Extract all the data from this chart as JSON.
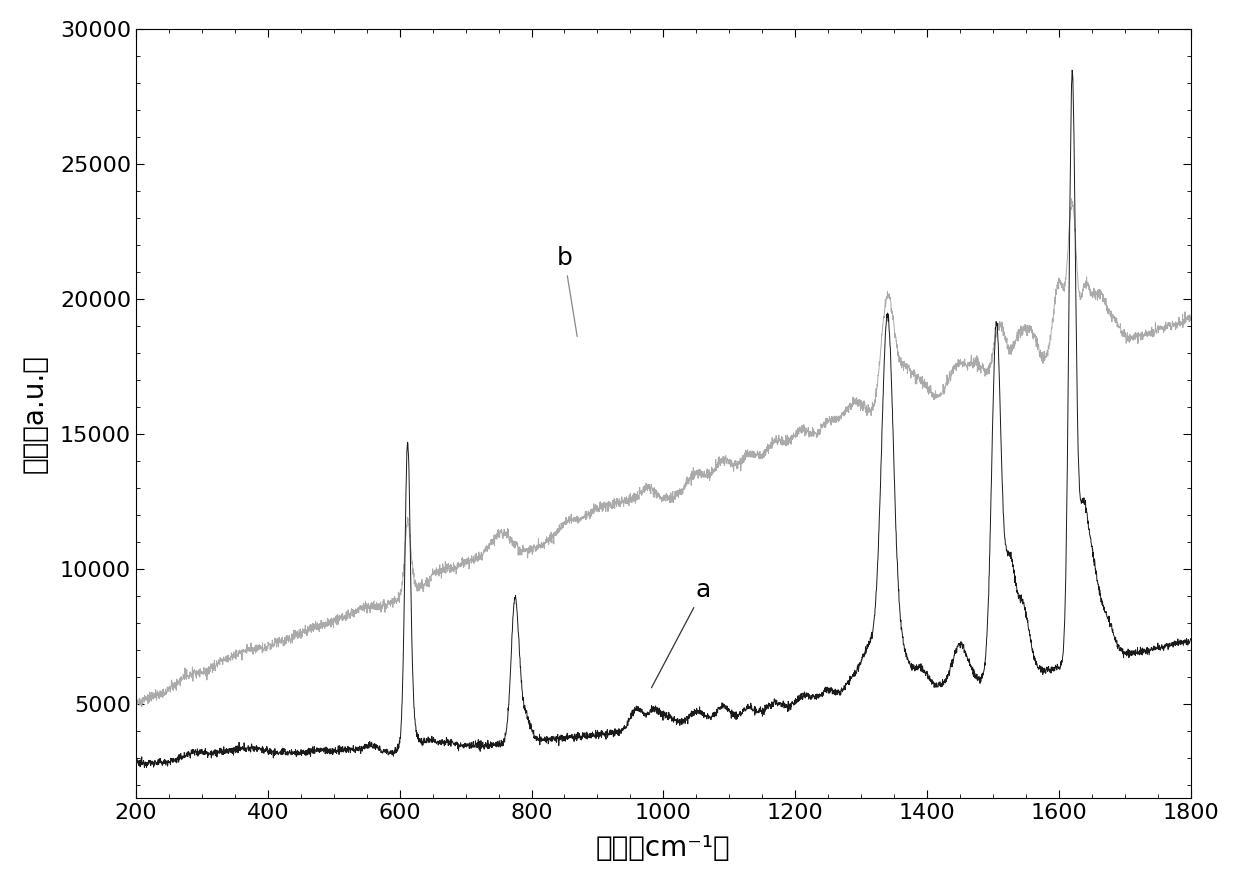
{
  "xlim": [
    200,
    1800
  ],
  "ylim": [
    1500,
    30000
  ],
  "yticks": [
    5000,
    10000,
    15000,
    20000,
    25000,
    30000
  ],
  "xticks": [
    200,
    400,
    600,
    800,
    1000,
    1200,
    1400,
    1600,
    1800
  ],
  "xlabel": "波数（cm⁻¹）",
  "ylabel": "强度（a.u.）",
  "line_a_color": "#1a1a1a",
  "line_b_color": "#aaaaaa",
  "label_a": "a",
  "label_b": "b",
  "background_color": "#ffffff",
  "font_size_label": 20,
  "font_size_tick": 16,
  "font_size_annotation": 18
}
